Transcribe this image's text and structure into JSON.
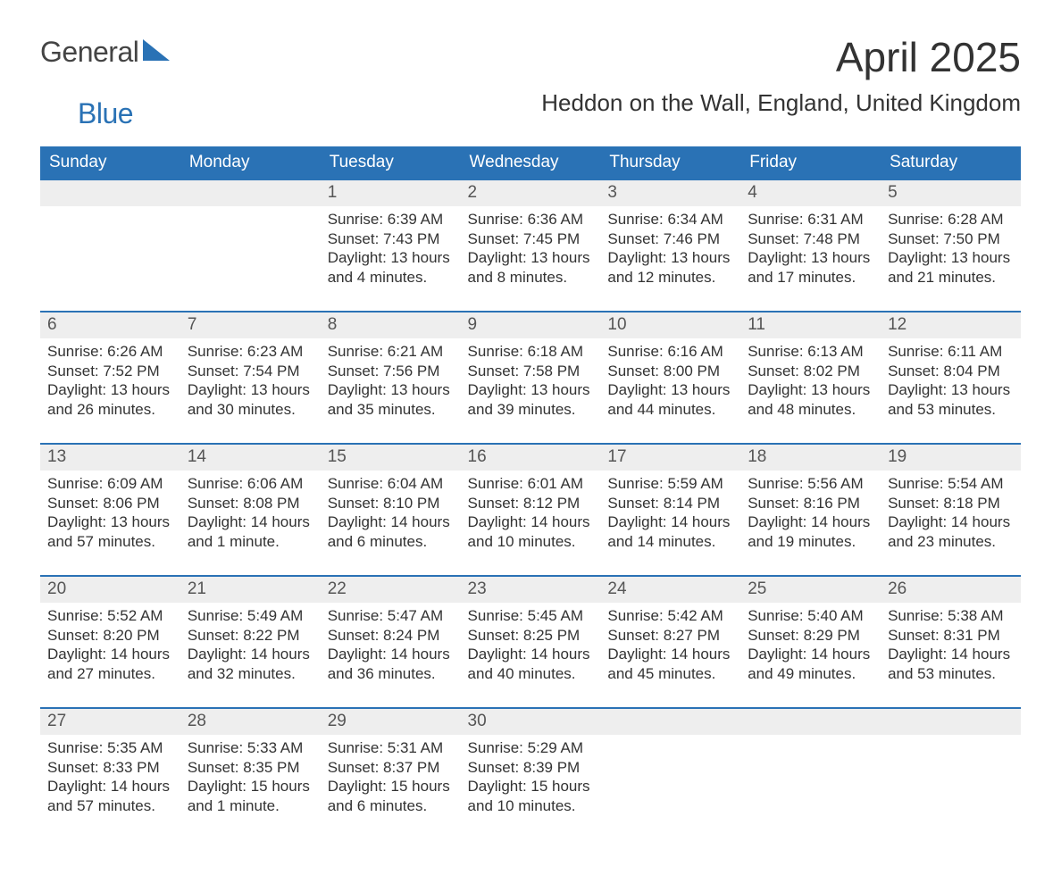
{
  "brand": {
    "word1": "General",
    "word2": "Blue",
    "color_text": "#444444",
    "color_accent": "#2a72b5"
  },
  "title": "April 2025",
  "subtitle": "Heddon on the Wall, England, United Kingdom",
  "calendar": {
    "header_bg": "#2a72b5",
    "header_fg": "#ffffff",
    "daynum_bg": "#eeeeee",
    "row_border_color": "#2a72b5",
    "text_color": "#333333",
    "days": [
      "Sunday",
      "Monday",
      "Tuesday",
      "Wednesday",
      "Thursday",
      "Friday",
      "Saturday"
    ],
    "weeks": [
      [
        null,
        null,
        {
          "n": "1",
          "sunrise": "6:39 AM",
          "sunset": "7:43 PM",
          "daylight": "13 hours and 4 minutes."
        },
        {
          "n": "2",
          "sunrise": "6:36 AM",
          "sunset": "7:45 PM",
          "daylight": "13 hours and 8 minutes."
        },
        {
          "n": "3",
          "sunrise": "6:34 AM",
          "sunset": "7:46 PM",
          "daylight": "13 hours and 12 minutes."
        },
        {
          "n": "4",
          "sunrise": "6:31 AM",
          "sunset": "7:48 PM",
          "daylight": "13 hours and 17 minutes."
        },
        {
          "n": "5",
          "sunrise": "6:28 AM",
          "sunset": "7:50 PM",
          "daylight": "13 hours and 21 minutes."
        }
      ],
      [
        {
          "n": "6",
          "sunrise": "6:26 AM",
          "sunset": "7:52 PM",
          "daylight": "13 hours and 26 minutes."
        },
        {
          "n": "7",
          "sunrise": "6:23 AM",
          "sunset": "7:54 PM",
          "daylight": "13 hours and 30 minutes."
        },
        {
          "n": "8",
          "sunrise": "6:21 AM",
          "sunset": "7:56 PM",
          "daylight": "13 hours and 35 minutes."
        },
        {
          "n": "9",
          "sunrise": "6:18 AM",
          "sunset": "7:58 PM",
          "daylight": "13 hours and 39 minutes."
        },
        {
          "n": "10",
          "sunrise": "6:16 AM",
          "sunset": "8:00 PM",
          "daylight": "13 hours and 44 minutes."
        },
        {
          "n": "11",
          "sunrise": "6:13 AM",
          "sunset": "8:02 PM",
          "daylight": "13 hours and 48 minutes."
        },
        {
          "n": "12",
          "sunrise": "6:11 AM",
          "sunset": "8:04 PM",
          "daylight": "13 hours and 53 minutes."
        }
      ],
      [
        {
          "n": "13",
          "sunrise": "6:09 AM",
          "sunset": "8:06 PM",
          "daylight": "13 hours and 57 minutes."
        },
        {
          "n": "14",
          "sunrise": "6:06 AM",
          "sunset": "8:08 PM",
          "daylight": "14 hours and 1 minute."
        },
        {
          "n": "15",
          "sunrise": "6:04 AM",
          "sunset": "8:10 PM",
          "daylight": "14 hours and 6 minutes."
        },
        {
          "n": "16",
          "sunrise": "6:01 AM",
          "sunset": "8:12 PM",
          "daylight": "14 hours and 10 minutes."
        },
        {
          "n": "17",
          "sunrise": "5:59 AM",
          "sunset": "8:14 PM",
          "daylight": "14 hours and 14 minutes."
        },
        {
          "n": "18",
          "sunrise": "5:56 AM",
          "sunset": "8:16 PM",
          "daylight": "14 hours and 19 minutes."
        },
        {
          "n": "19",
          "sunrise": "5:54 AM",
          "sunset": "8:18 PM",
          "daylight": "14 hours and 23 minutes."
        }
      ],
      [
        {
          "n": "20",
          "sunrise": "5:52 AM",
          "sunset": "8:20 PM",
          "daylight": "14 hours and 27 minutes."
        },
        {
          "n": "21",
          "sunrise": "5:49 AM",
          "sunset": "8:22 PM",
          "daylight": "14 hours and 32 minutes."
        },
        {
          "n": "22",
          "sunrise": "5:47 AM",
          "sunset": "8:24 PM",
          "daylight": "14 hours and 36 minutes."
        },
        {
          "n": "23",
          "sunrise": "5:45 AM",
          "sunset": "8:25 PM",
          "daylight": "14 hours and 40 minutes."
        },
        {
          "n": "24",
          "sunrise": "5:42 AM",
          "sunset": "8:27 PM",
          "daylight": "14 hours and 45 minutes."
        },
        {
          "n": "25",
          "sunrise": "5:40 AM",
          "sunset": "8:29 PM",
          "daylight": "14 hours and 49 minutes."
        },
        {
          "n": "26",
          "sunrise": "5:38 AM",
          "sunset": "8:31 PM",
          "daylight": "14 hours and 53 minutes."
        }
      ],
      [
        {
          "n": "27",
          "sunrise": "5:35 AM",
          "sunset": "8:33 PM",
          "daylight": "14 hours and 57 minutes."
        },
        {
          "n": "28",
          "sunrise": "5:33 AM",
          "sunset": "8:35 PM",
          "daylight": "15 hours and 1 minute."
        },
        {
          "n": "29",
          "sunrise": "5:31 AM",
          "sunset": "8:37 PM",
          "daylight": "15 hours and 6 minutes."
        },
        {
          "n": "30",
          "sunrise": "5:29 AM",
          "sunset": "8:39 PM",
          "daylight": "15 hours and 10 minutes."
        },
        null,
        null,
        null
      ]
    ],
    "labels": {
      "sunrise": "Sunrise: ",
      "sunset": "Sunset: ",
      "daylight": "Daylight: "
    }
  }
}
